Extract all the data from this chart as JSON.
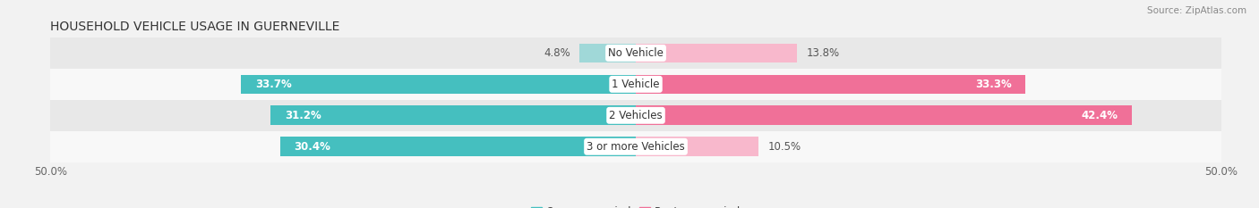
{
  "title": "HOUSEHOLD VEHICLE USAGE IN GUERNEVILLE",
  "source": "Source: ZipAtlas.com",
  "categories": [
    "No Vehicle",
    "1 Vehicle",
    "2 Vehicles",
    "3 or more Vehicles"
  ],
  "owner_values": [
    4.8,
    33.7,
    31.2,
    30.4
  ],
  "renter_values": [
    13.8,
    33.3,
    42.4,
    10.5
  ],
  "owner_color": "#45BFBF",
  "renter_color": "#F07098",
  "owner_color_light": "#A0D8D8",
  "renter_color_light": "#F8B8CC",
  "axis_limit": 50.0,
  "bar_height": 0.62,
  "background_color": "#f2f2f2",
  "row_bg_even": "#e8e8e8",
  "row_bg_odd": "#f8f8f8",
  "title_fontsize": 10,
  "value_fontsize": 8.5,
  "cat_fontsize": 8.5,
  "tick_fontsize": 8.5,
  "legend_fontsize": 8.5,
  "source_fontsize": 7.5
}
